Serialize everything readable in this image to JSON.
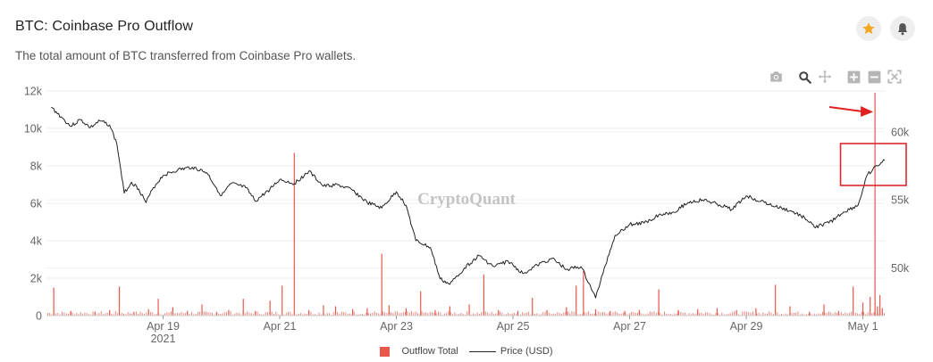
{
  "header": {
    "title": "BTC: Coinbase Pro Outflow",
    "subtitle": "The total amount of BTC transferred from Coinbase Pro wallets."
  },
  "actions": {
    "favorite_icon": "star-icon",
    "alert_icon": "bell-icon"
  },
  "toolbar": [
    "camera-icon",
    "zoom-icon",
    "pan-icon",
    "zoom-in-icon",
    "zoom-out-icon",
    "autoscale-icon"
  ],
  "watermark": "CryptoQuant",
  "colors": {
    "outflow": "#e8574a",
    "price": "#222222",
    "star": "#f5a623",
    "annotation": "#e02020"
  },
  "chart_data": {
    "type": "bar+line",
    "x_type": "date",
    "x_range": [
      "2021-04-17",
      "2021-05-01T09:00"
    ],
    "x_ticks": [
      {
        "date": "2021-04-19",
        "label": "Apr 19",
        "sublabel": "2021"
      },
      {
        "date": "2021-04-21",
        "label": "Apr 21"
      },
      {
        "date": "2021-04-23",
        "label": "Apr 23"
      },
      {
        "date": "2021-04-25",
        "label": "Apr 25"
      },
      {
        "date": "2021-04-27",
        "label": "Apr 27"
      },
      {
        "date": "2021-04-29",
        "label": "Apr 29"
      },
      {
        "date": "2021-05-01",
        "label": "May 1"
      }
    ],
    "y_left": {
      "label": "",
      "range": [
        0,
        12000
      ],
      "ticks": [
        0,
        2000,
        4000,
        6000,
        8000,
        10000,
        12000
      ],
      "tick_labels": [
        "0",
        "2k",
        "4k",
        "6k",
        "8k",
        "10k",
        "12k"
      ]
    },
    "y_right": {
      "label": "",
      "range": [
        46500,
        63000
      ],
      "ticks": [
        50000,
        55000,
        60000
      ],
      "tick_labels": [
        "50k",
        "55k",
        "60k"
      ]
    },
    "grid": true,
    "legend_position": "bottom-center",
    "series": [
      {
        "name": "Outflow Total",
        "kind": "bar",
        "axis": "left",
        "points": [
          [
            "2021-04-17T03:00",
            1500
          ],
          [
            "2021-04-17T10:00",
            250
          ],
          [
            "2021-04-17T20:00",
            180
          ],
          [
            "2021-04-18T02:00",
            300
          ],
          [
            "2021-04-18T06:00",
            1550
          ],
          [
            "2021-04-18T12:00",
            200
          ],
          [
            "2021-04-18T18:00",
            350
          ],
          [
            "2021-04-18T22:00",
            900
          ],
          [
            "2021-04-19T04:00",
            450
          ],
          [
            "2021-04-19T10:00",
            250
          ],
          [
            "2021-04-19T16:00",
            600
          ],
          [
            "2021-04-19T22:00",
            200
          ],
          [
            "2021-04-20T03:00",
            300
          ],
          [
            "2021-04-20T09:00",
            900
          ],
          [
            "2021-04-20T14:00",
            250
          ],
          [
            "2021-04-20T20:00",
            800
          ],
          [
            "2021-04-21T01:00",
            1600
          ],
          [
            "2021-04-21T06:00",
            8700
          ],
          [
            "2021-04-21T12:00",
            300
          ],
          [
            "2021-04-21T18:00",
            550
          ],
          [
            "2021-04-21T23:00",
            500
          ],
          [
            "2021-04-22T06:00",
            350
          ],
          [
            "2021-04-22T12:00",
            400
          ],
          [
            "2021-04-22T18:00",
            3300
          ],
          [
            "2021-04-22T21:00",
            550
          ],
          [
            "2021-04-23T04:00",
            400
          ],
          [
            "2021-04-23T10:00",
            1300
          ],
          [
            "2021-04-23T16:00",
            300
          ],
          [
            "2021-04-23T22:00",
            500
          ],
          [
            "2021-04-24T06:00",
            600
          ],
          [
            "2021-04-24T12:00",
            2200
          ],
          [
            "2021-04-24T18:00",
            300
          ],
          [
            "2021-04-25T02:00",
            250
          ],
          [
            "2021-04-25T08:00",
            950
          ],
          [
            "2021-04-25T14:00",
            300
          ],
          [
            "2021-04-25T22:00",
            450
          ],
          [
            "2021-04-26T02:00",
            1600
          ],
          [
            "2021-04-26T05:00",
            2400
          ],
          [
            "2021-04-26T10:00",
            350
          ],
          [
            "2021-04-26T16:00",
            250
          ],
          [
            "2021-04-26T22:00",
            250
          ],
          [
            "2021-04-27T04:00",
            300
          ],
          [
            "2021-04-27T12:00",
            1400
          ],
          [
            "2021-04-27T20:00",
            300
          ],
          [
            "2021-04-28T04:00",
            350
          ],
          [
            "2021-04-28T12:00",
            400
          ],
          [
            "2021-04-28T20:00",
            300
          ],
          [
            "2021-04-29T04:00",
            400
          ],
          [
            "2021-04-29T12:00",
            1650
          ],
          [
            "2021-04-29T18:00",
            500
          ],
          [
            "2021-04-30T02:00",
            200
          ],
          [
            "2021-04-30T08:00",
            600
          ],
          [
            "2021-04-30T14:00",
            250
          ],
          [
            "2021-04-30T20:00",
            1550
          ],
          [
            "2021-05-01T00:00",
            700
          ],
          [
            "2021-05-01T03:00",
            1000
          ],
          [
            "2021-05-01T05:00",
            11900
          ],
          [
            "2021-05-01T06:00",
            500
          ],
          [
            "2021-05-01T07:00",
            1100
          ],
          [
            "2021-05-01T08:00",
            400
          ]
        ]
      },
      {
        "name": "Price (USD)",
        "kind": "line",
        "axis": "right",
        "points": [
          [
            "2021-04-17T02:00",
            61800
          ],
          [
            "2021-04-17T06:00",
            61100
          ],
          [
            "2021-04-17T10:00",
            60400
          ],
          [
            "2021-04-17T14:00",
            60900
          ],
          [
            "2021-04-17T18:00",
            60300
          ],
          [
            "2021-04-17T22:00",
            60800
          ],
          [
            "2021-04-18T02:00",
            60500
          ],
          [
            "2021-04-18T05:00",
            59100
          ],
          [
            "2021-04-18T08:00",
            55500
          ],
          [
            "2021-04-18T11:00",
            56300
          ],
          [
            "2021-04-18T14:00",
            55800
          ],
          [
            "2021-04-18T17:00",
            54800
          ],
          [
            "2021-04-18T20:00",
            55900
          ],
          [
            "2021-04-19T00:00",
            56800
          ],
          [
            "2021-04-19T06:00",
            57200
          ],
          [
            "2021-04-19T12:00",
            57400
          ],
          [
            "2021-04-19T18:00",
            57000
          ],
          [
            "2021-04-20T00:00",
            55300
          ],
          [
            "2021-04-20T04:00",
            56200
          ],
          [
            "2021-04-20T10:00",
            55900
          ],
          [
            "2021-04-20T14:00",
            54900
          ],
          [
            "2021-04-20T20:00",
            55800
          ],
          [
            "2021-04-21T00:00",
            56500
          ],
          [
            "2021-04-21T06:00",
            56200
          ],
          [
            "2021-04-21T12:00",
            57100
          ],
          [
            "2021-04-21T18:00",
            56000
          ],
          [
            "2021-04-22T00:00",
            56100
          ],
          [
            "2021-04-22T06:00",
            55700
          ],
          [
            "2021-04-22T12:00",
            54800
          ],
          [
            "2021-04-22T18:00",
            54400
          ],
          [
            "2021-04-23T00:00",
            55600
          ],
          [
            "2021-04-23T04:00",
            54600
          ],
          [
            "2021-04-23T08:00",
            52000
          ],
          [
            "2021-04-23T14:00",
            51500
          ],
          [
            "2021-04-23T18:00",
            49200
          ],
          [
            "2021-04-23T22:00",
            48800
          ],
          [
            "2021-04-24T04:00",
            50000
          ],
          [
            "2021-04-24T10:00",
            50900
          ],
          [
            "2021-04-24T16:00",
            50100
          ],
          [
            "2021-04-24T22:00",
            50500
          ],
          [
            "2021-04-25T04:00",
            49600
          ],
          [
            "2021-04-25T10:00",
            50200
          ],
          [
            "2021-04-25T16:00",
            50700
          ],
          [
            "2021-04-25T22:00",
            49900
          ],
          [
            "2021-04-26T04:00",
            50100
          ],
          [
            "2021-04-26T08:00",
            48600
          ],
          [
            "2021-04-26T10:00",
            47800
          ],
          [
            "2021-04-26T14:00",
            50200
          ],
          [
            "2021-04-26T18:00",
            52400
          ],
          [
            "2021-04-27T00:00",
            53200
          ],
          [
            "2021-04-27T06:00",
            53300
          ],
          [
            "2021-04-27T12:00",
            53900
          ],
          [
            "2021-04-27T18:00",
            54100
          ],
          [
            "2021-04-28T00:00",
            54800
          ],
          [
            "2021-04-28T06:00",
            55000
          ],
          [
            "2021-04-28T12:00",
            54700
          ],
          [
            "2021-04-28T18:00",
            54300
          ],
          [
            "2021-04-29T00:00",
            55300
          ],
          [
            "2021-04-29T06:00",
            54900
          ],
          [
            "2021-04-29T12:00",
            54500
          ],
          [
            "2021-04-29T18:00",
            54200
          ],
          [
            "2021-04-30T00:00",
            53700
          ],
          [
            "2021-04-30T04:00",
            53000
          ],
          [
            "2021-04-30T10:00",
            53300
          ],
          [
            "2021-04-30T16:00",
            54100
          ],
          [
            "2021-04-30T22:00",
            54600
          ],
          [
            "2021-05-01T02:00",
            56900
          ],
          [
            "2021-05-01T04:00",
            57200
          ],
          [
            "2021-05-01T06:00",
            57500
          ],
          [
            "2021-05-01T09:00",
            57900
          ]
        ]
      }
    ],
    "annotations": [
      {
        "type": "arrow",
        "text": "",
        "points_to": "2021-05-01T05:00"
      },
      {
        "type": "box",
        "text": "",
        "around": [
          "2021-05-01T00:00",
          "2021-05-01T09:00"
        ]
      }
    ]
  }
}
